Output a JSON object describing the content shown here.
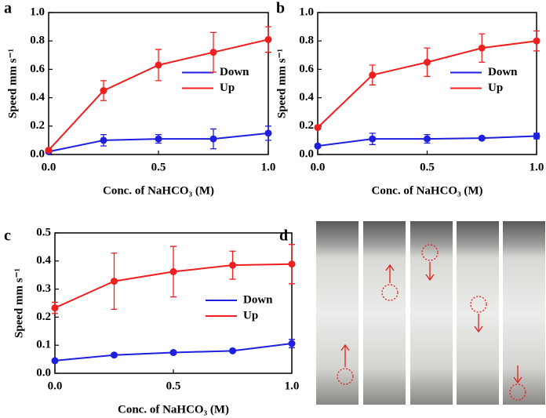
{
  "chart_data": [
    {
      "type": "line",
      "panel": "a",
      "ylabel": "Speed mm s⁻¹",
      "xlabel": "Conc. of NaHCO₃ (M)",
      "x": [
        0,
        0.25,
        0.5,
        0.75,
        1
      ],
      "xlim": [
        0,
        1
      ],
      "xticks": [
        {
          "value": 0,
          "label": "0.0"
        },
        0.5,
        {
          "value": 1,
          "label": "1.0"
        }
      ],
      "ylim": [
        0,
        1
      ],
      "yticks": [
        {
          "value": 0,
          "label": "0.0"
        },
        0.2,
        0.4,
        0.6,
        0.8,
        {
          "value": 1,
          "label": "1.0"
        }
      ],
      "legend_loc": "center right",
      "series": [
        {
          "name": "Down",
          "color": "#1f1fe0",
          "values": [
            0.02,
            0.1,
            0.11,
            0.11,
            0.15
          ],
          "errors": [
            0.01,
            0.04,
            0.03,
            0.07,
            0.05
          ]
        },
        {
          "name": "Up",
          "color": "#f01f1f",
          "values": [
            0.03,
            0.45,
            0.63,
            0.72,
            0.81
          ],
          "errors": [
            0.01,
            0.07,
            0.11,
            0.14,
            0.09
          ]
        }
      ]
    },
    {
      "type": "line",
      "panel": "b",
      "ylabel": "Speed mm s⁻¹",
      "xlabel": "Conc. of NaHCO₃ (M)",
      "x": [
        0,
        0.25,
        0.5,
        0.75,
        1
      ],
      "xlim": [
        0,
        1
      ],
      "xticks": [
        {
          "value": 0,
          "label": "0.0"
        },
        0.5,
        {
          "value": 1,
          "label": "1.0"
        }
      ],
      "ylim": [
        0,
        1
      ],
      "yticks": [
        {
          "value": 0,
          "label": "0.0"
        },
        0.2,
        0.4,
        0.6,
        0.8,
        {
          "value": 1,
          "label": "1.0"
        }
      ],
      "legend_loc": "center right",
      "series": [
        {
          "name": "Down",
          "color": "#1f1fe0",
          "values": [
            0.06,
            0.11,
            0.11,
            0.115,
            0.13
          ],
          "errors": [
            0.01,
            0.04,
            0.03,
            0.01,
            0.02
          ]
        },
        {
          "name": "Up",
          "color": "#f01f1f",
          "values": [
            0.19,
            0.56,
            0.65,
            0.75,
            0.8
          ],
          "errors": [
            0.01,
            0.07,
            0.1,
            0.1,
            0.07
          ]
        }
      ]
    },
    {
      "type": "line",
      "panel": "c",
      "ylabel": "Speed mm s⁻¹",
      "xlabel": "Conc. of NaHCO₃ (M)",
      "x": [
        0,
        0.25,
        0.5,
        0.75,
        1
      ],
      "xlim": [
        0,
        1
      ],
      "xticks": [
        {
          "value": 0,
          "label": "0.0"
        },
        0.5,
        {
          "value": 1,
          "label": "1.0"
        }
      ],
      "ylim": [
        0,
        0.5
      ],
      "yticks": [
        {
          "value": 0,
          "label": "0.0"
        },
        0.1,
        0.2,
        0.3,
        0.4,
        0.5
      ],
      "legend_loc": "lower right",
      "series": [
        {
          "name": "Down",
          "color": "#1f1fe0",
          "values": [
            0.045,
            0.065,
            0.074,
            0.08,
            0.106
          ],
          "errors": [
            0.005,
            0.005,
            0.005,
            0.005,
            0.015
          ]
        },
        {
          "name": "Up",
          "color": "#f01f1f",
          "values": [
            0.233,
            0.328,
            0.362,
            0.385,
            0.389
          ],
          "errors": [
            0.02,
            0.1,
            0.09,
            0.05,
            0.07
          ]
        }
      ]
    }
  ],
  "photo_panel": {
    "panel": "d"
  }
}
